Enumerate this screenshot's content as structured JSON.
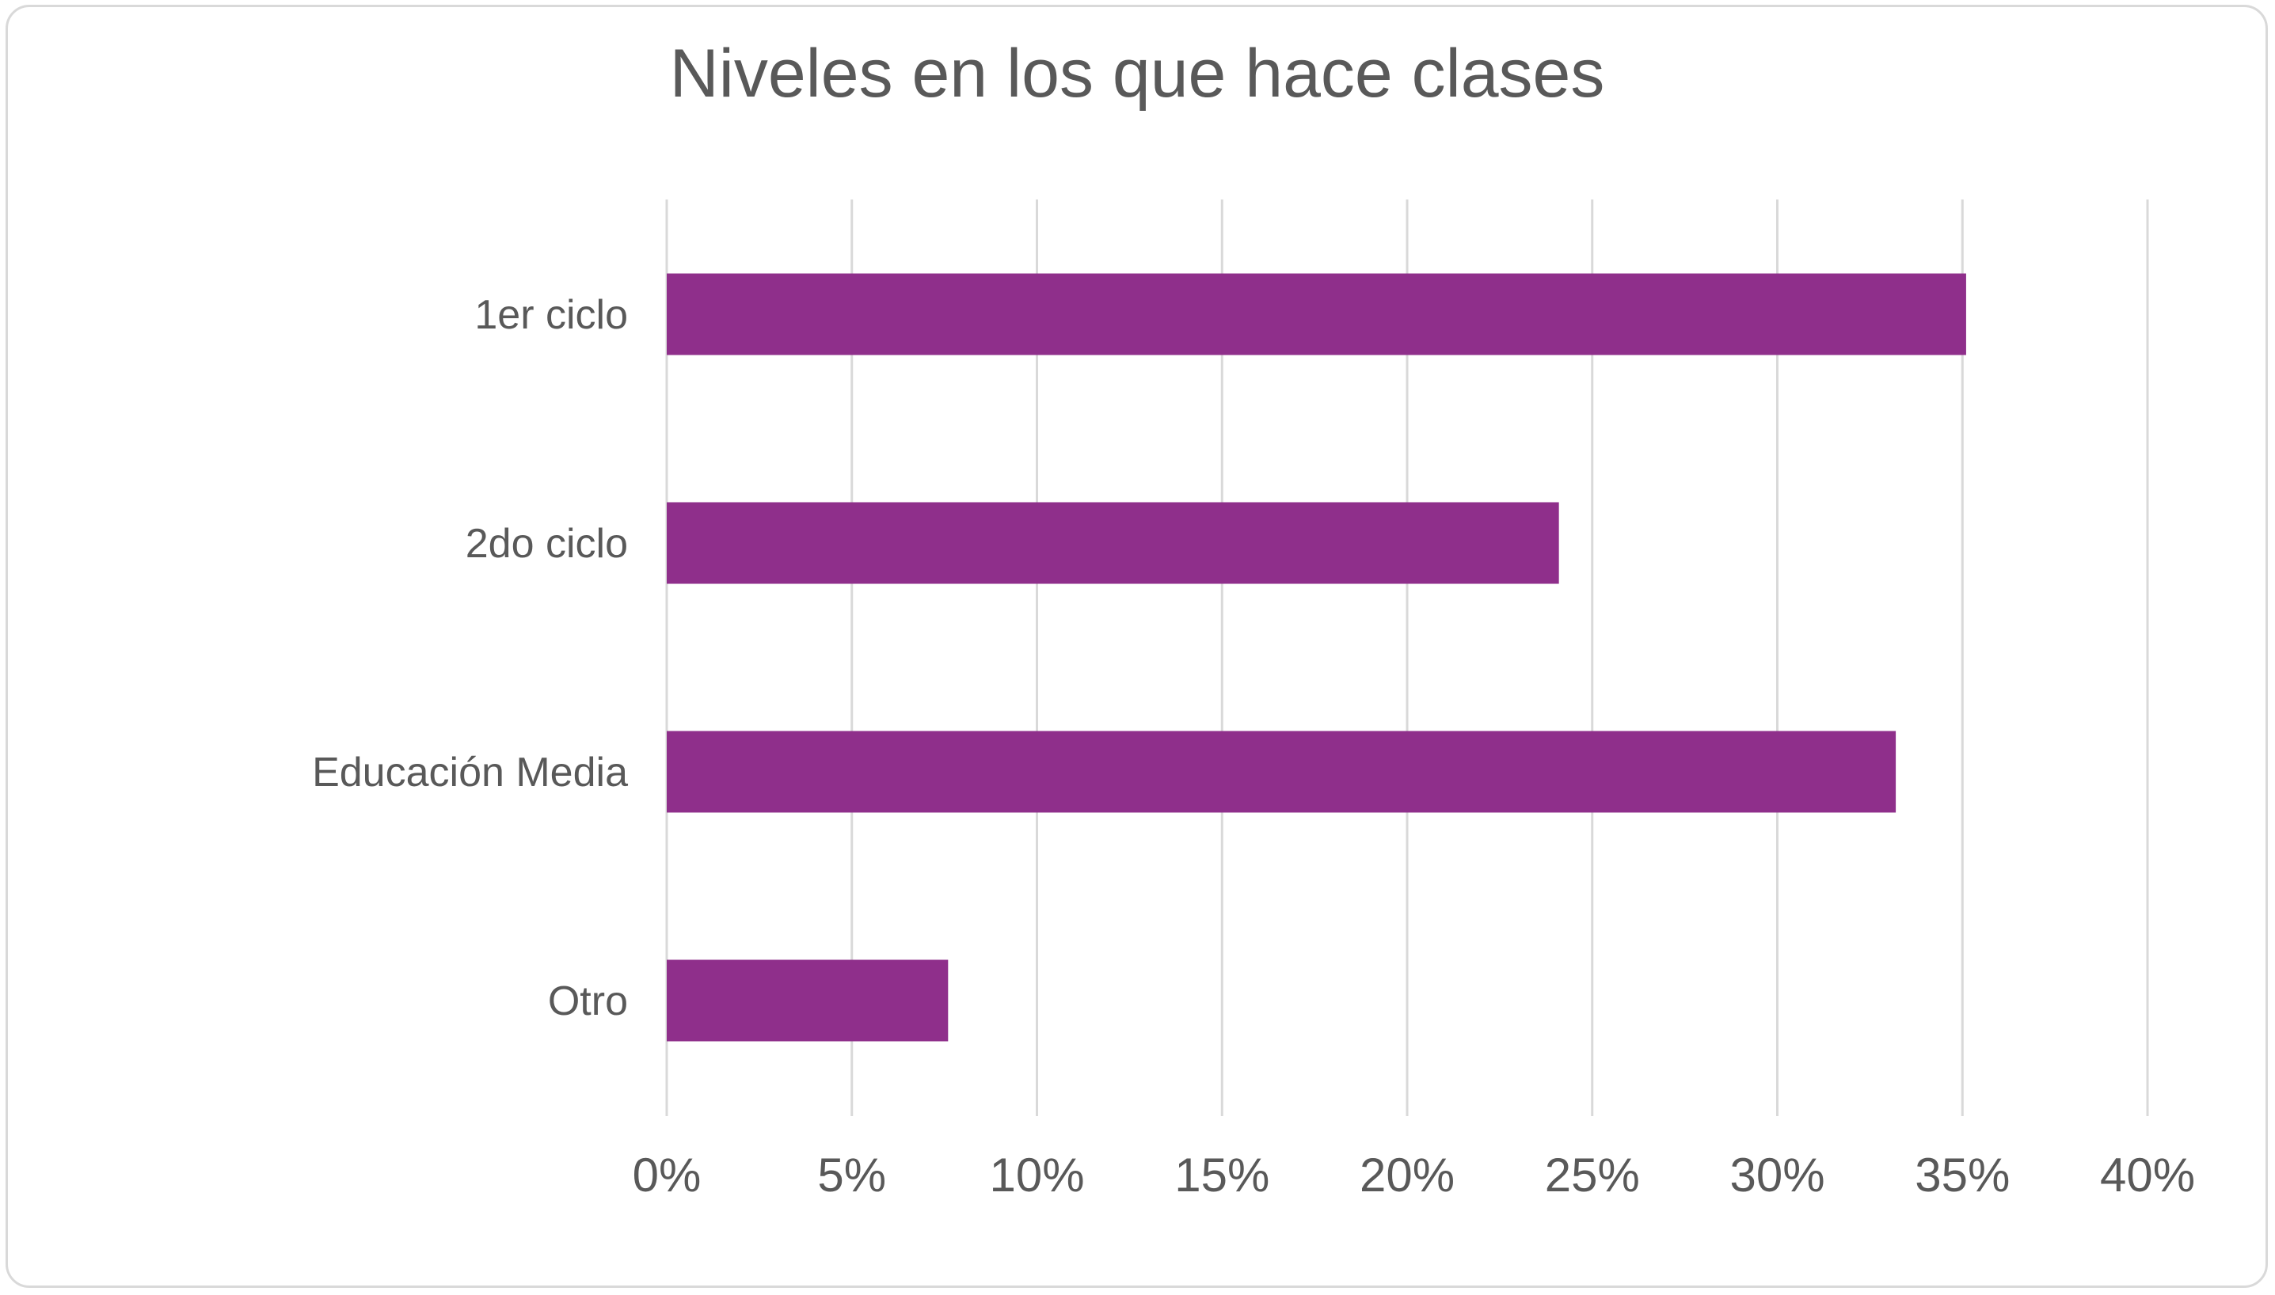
{
  "chart_data": {
    "type": "bar",
    "orientation": "horizontal",
    "title": "Niveles en los que hace clases",
    "categories": [
      "1er ciclo",
      "2do ciclo",
      "Educación Media",
      "Otro"
    ],
    "values": [
      35.1,
      24.1,
      33.2,
      7.6
    ],
    "xlim": [
      0,
      40
    ],
    "xticks": [
      0,
      5,
      10,
      15,
      20,
      25,
      30,
      35,
      40
    ],
    "xtick_labels": [
      "0%",
      "5%",
      "10%",
      "15%",
      "20%",
      "25%",
      "30%",
      "35%",
      "40%"
    ],
    "grid": "vertical",
    "legend": "none",
    "bar_color": "#8f2f8b",
    "grid_color": "#d9d9d9",
    "text_color": "#595959"
  }
}
